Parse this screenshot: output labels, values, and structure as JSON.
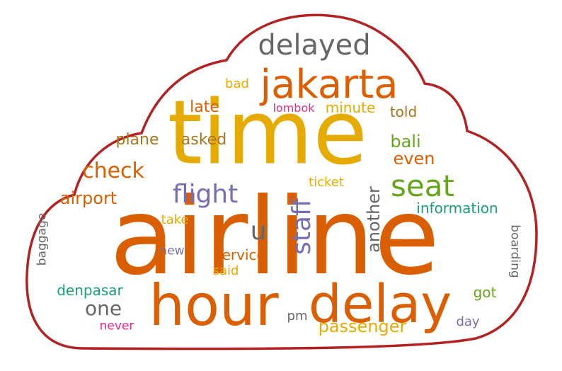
{
  "colors": {
    "outline": "#b22222",
    "background": "#ffffff"
  },
  "words": [
    {
      "text": "airline",
      "color": "#d95f02"
    },
    {
      "text": "time",
      "color": "#e6ab02"
    },
    {
      "text": "hour",
      "color": "#d95f02"
    },
    {
      "text": "delay",
      "color": "#d95f02"
    },
    {
      "text": "jakarta",
      "color": "#d95f02"
    },
    {
      "text": "delayed",
      "color": "#666666"
    },
    {
      "text": "seat",
      "color": "#66a61e"
    },
    {
      "text": "flight",
      "color": "#7570b3"
    },
    {
      "text": "check",
      "color": "#d95f02"
    },
    {
      "text": "staff",
      "color": "#7570b3"
    },
    {
      "text": "u",
      "color": "#666666"
    },
    {
      "text": "airport",
      "color": "#d95f02"
    },
    {
      "text": "one",
      "color": "#666666"
    },
    {
      "text": "passenger",
      "color": "#e6ab02"
    },
    {
      "text": "another",
      "color": "#666666"
    },
    {
      "text": "bali",
      "color": "#66a61e"
    },
    {
      "text": "even",
      "color": "#d95f02"
    },
    {
      "text": "information",
      "color": "#1b9e77"
    },
    {
      "text": "plane",
      "color": "#a6761d"
    },
    {
      "text": "asked",
      "color": "#a6761d"
    },
    {
      "text": "late",
      "color": "#d95f02"
    },
    {
      "text": "minute",
      "color": "#e6ab02"
    },
    {
      "text": "told",
      "color": "#a6761d"
    },
    {
      "text": "bad",
      "color": "#e6ab02"
    },
    {
      "text": "lombok",
      "color": "#e7298a"
    },
    {
      "text": "ticket",
      "color": "#e6ab02"
    },
    {
      "text": "take",
      "color": "#e6ab02"
    },
    {
      "text": "new",
      "color": "#7570b3"
    },
    {
      "text": "service",
      "color": "#d95f02"
    },
    {
      "text": "said",
      "color": "#e6ab02"
    },
    {
      "text": "denpasar",
      "color": "#1b9e77"
    },
    {
      "text": "got",
      "color": "#66a61e"
    },
    {
      "text": "baggage",
      "color": "#666666"
    },
    {
      "text": "boarding",
      "color": "#666666"
    },
    {
      "text": "never",
      "color": "#e7298a"
    },
    {
      "text": "pm",
      "color": "#666666"
    },
    {
      "text": "day",
      "color": "#7570b3"
    }
  ]
}
